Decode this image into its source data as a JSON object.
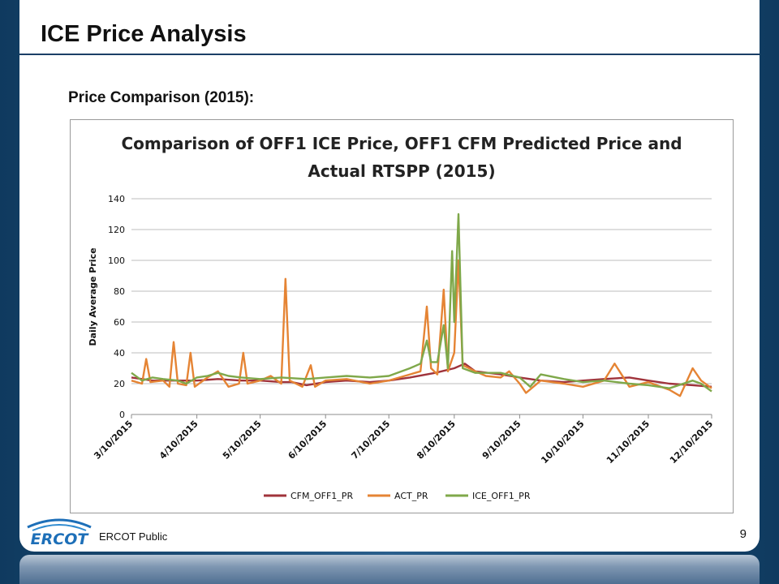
{
  "slide": {
    "title": "ICE Price Analysis",
    "subtitle": "Price Comparison (2015):",
    "footer": "ERCOT Public",
    "page_number": "9",
    "logo_text": "ERCOT"
  },
  "chart_data": {
    "type": "line",
    "title_line1": "Comparison of OFF1 ICE Price, OFF1 CFM Predicted Price and",
    "title_line2": "Actual RTSPP (2015)",
    "ylabel": "Daily Average Price",
    "xlabel": "",
    "ylim": [
      0,
      140
    ],
    "yticks": [
      "0",
      "20",
      "40",
      "60",
      "80",
      "100",
      "120",
      "140"
    ],
    "xticks": [
      "3/10/2015",
      "4/10/2015",
      "5/10/2015",
      "6/10/2015",
      "7/10/2015",
      "8/10/2015",
      "9/10/2015",
      "10/10/2015",
      "11/10/2015",
      "12/10/2015"
    ],
    "grid": "horizontal",
    "legend_position": "bottom",
    "colors": {
      "CFM_OFF1_PR": "#a0333b",
      "ACT_PR": "#e58434",
      "ICE_OFF1_PR": "#7fa84a"
    },
    "series": [
      {
        "name": "CFM_OFF1_PR",
        "color": "#a0333b",
        "points": [
          [
            "3/10/2015",
            24
          ],
          [
            "3/20/2015",
            22
          ],
          [
            "4/1/2015",
            22
          ],
          [
            "4/10/2015",
            22
          ],
          [
            "4/20/2015",
            23
          ],
          [
            "5/1/2015",
            22
          ],
          [
            "5/10/2015",
            22
          ],
          [
            "5/20/2015",
            21
          ],
          [
            "5/25/2015",
            21
          ],
          [
            "6/1/2015",
            19
          ],
          [
            "6/10/2015",
            21
          ],
          [
            "6/20/2015",
            22
          ],
          [
            "7/1/2015",
            21
          ],
          [
            "7/10/2015",
            22
          ],
          [
            "7/20/2015",
            24
          ],
          [
            "8/1/2015",
            27
          ],
          [
            "8/10/2015",
            30
          ],
          [
            "8/15/2015",
            33
          ],
          [
            "8/20/2015",
            28
          ],
          [
            "9/1/2015",
            26
          ],
          [
            "9/10/2015",
            24
          ],
          [
            "9/20/2015",
            22
          ],
          [
            "10/1/2015",
            21
          ],
          [
            "10/10/2015",
            22
          ],
          [
            "10/20/2015",
            23
          ],
          [
            "11/1/2015",
            24
          ],
          [
            "11/10/2015",
            22
          ],
          [
            "11/20/2015",
            20
          ],
          [
            "12/1/2015",
            19
          ],
          [
            "12/10/2015",
            18
          ]
        ]
      },
      {
        "name": "ACT_PR",
        "color": "#e58434",
        "points": [
          [
            "3/10/2015",
            22
          ],
          [
            "3/15/2015",
            20
          ],
          [
            "3/17/2015",
            36
          ],
          [
            "3/19/2015",
            21
          ],
          [
            "3/25/2015",
            22
          ],
          [
            "3/28/2015",
            18
          ],
          [
            "3/30/2015",
            47
          ],
          [
            "4/1/2015",
            20
          ],
          [
            "4/5/2015",
            19
          ],
          [
            "4/7/2015",
            40
          ],
          [
            "4/9/2015",
            18
          ],
          [
            "4/15/2015",
            24
          ],
          [
            "4/20/2015",
            28
          ],
          [
            "4/25/2015",
            18
          ],
          [
            "4/30/2015",
            20
          ],
          [
            "5/2/2015",
            40
          ],
          [
            "5/4/2015",
            20
          ],
          [
            "5/10/2015",
            22
          ],
          [
            "5/15/2015",
            25
          ],
          [
            "5/20/2015",
            20
          ],
          [
            "5/22/2015",
            88
          ],
          [
            "5/24/2015",
            22
          ],
          [
            "5/30/2015",
            18
          ],
          [
            "6/3/2015",
            32
          ],
          [
            "6/5/2015",
            18
          ],
          [
            "6/10/2015",
            22
          ],
          [
            "6/20/2015",
            23
          ],
          [
            "7/1/2015",
            20
          ],
          [
            "7/10/2015",
            22
          ],
          [
            "7/15/2015",
            24
          ],
          [
            "7/20/2015",
            26
          ],
          [
            "7/25/2015",
            28
          ],
          [
            "7/28/2015",
            70
          ],
          [
            "7/30/2015",
            30
          ],
          [
            "8/2/2015",
            26
          ],
          [
            "8/5/2015",
            81
          ],
          [
            "8/7/2015",
            28
          ],
          [
            "8/10/2015",
            40
          ],
          [
            "8/12/2015",
            100
          ],
          [
            "8/14/2015",
            32
          ],
          [
            "8/20/2015",
            28
          ],
          [
            "8/25/2015",
            25
          ],
          [
            "9/1/2015",
            24
          ],
          [
            "9/5/2015",
            28
          ],
          [
            "9/10/2015",
            20
          ],
          [
            "9/13/2015",
            14
          ],
          [
            "9/20/2015",
            22
          ],
          [
            "10/1/2015",
            20
          ],
          [
            "10/10/2015",
            18
          ],
          [
            "10/20/2015",
            22
          ],
          [
            "10/25/2015",
            33
          ],
          [
            "11/1/2015",
            18
          ],
          [
            "11/10/2015",
            21
          ],
          [
            "11/20/2015",
            16
          ],
          [
            "11/25/2015",
            12
          ],
          [
            "12/1/2015",
            30
          ],
          [
            "12/5/2015",
            22
          ],
          [
            "12/10/2015",
            17
          ]
        ]
      },
      {
        "name": "ICE_OFF1_PR",
        "color": "#7fa84a",
        "points": [
          [
            "3/10/2015",
            27
          ],
          [
            "3/15/2015",
            22
          ],
          [
            "3/20/2015",
            24
          ],
          [
            "3/25/2015",
            23
          ],
          [
            "4/1/2015",
            22
          ],
          [
            "4/5/2015",
            20
          ],
          [
            "4/10/2015",
            24
          ],
          [
            "4/15/2015",
            25
          ],
          [
            "4/20/2015",
            27
          ],
          [
            "4/25/2015",
            25
          ],
          [
            "5/1/2015",
            24
          ],
          [
            "5/10/2015",
            23
          ],
          [
            "5/20/2015",
            24
          ],
          [
            "6/1/2015",
            23
          ],
          [
            "6/10/2015",
            24
          ],
          [
            "6/20/2015",
            25
          ],
          [
            "7/1/2015",
            24
          ],
          [
            "7/10/2015",
            25
          ],
          [
            "7/20/2015",
            30
          ],
          [
            "7/25/2015",
            33
          ],
          [
            "7/28/2015",
            48
          ],
          [
            "7/30/2015",
            34
          ],
          [
            "8/2/2015",
            34
          ],
          [
            "8/5/2015",
            58
          ],
          [
            "8/7/2015",
            30
          ],
          [
            "8/9/2015",
            106
          ],
          [
            "8/10/2015",
            60
          ],
          [
            "8/12/2015",
            130
          ],
          [
            "8/14/2015",
            30
          ],
          [
            "8/20/2015",
            27
          ],
          [
            "9/1/2015",
            27
          ],
          [
            "9/10/2015",
            24
          ],
          [
            "9/15/2015",
            18
          ],
          [
            "9/20/2015",
            26
          ],
          [
            "10/1/2015",
            23
          ],
          [
            "10/10/2015",
            21
          ],
          [
            "10/20/2015",
            22
          ],
          [
            "11/1/2015",
            20
          ],
          [
            "11/10/2015",
            19
          ],
          [
            "11/20/2015",
            17
          ],
          [
            "12/1/2015",
            22
          ],
          [
            "12/5/2015",
            20
          ],
          [
            "12/10/2015",
            15
          ]
        ]
      }
    ]
  }
}
